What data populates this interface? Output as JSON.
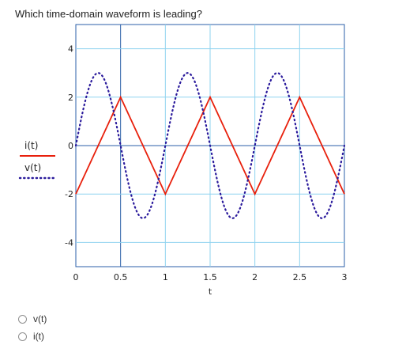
{
  "question": {
    "text": "Which time-domain waveform is leading?"
  },
  "options": [
    {
      "label": "v(t)"
    },
    {
      "label": "i(t)"
    }
  ],
  "chart_data": {
    "type": "line",
    "xlabel": "t",
    "xlim": [
      0,
      3
    ],
    "ylim": [
      -5,
      5
    ],
    "x_ticks": [
      0,
      0.5,
      1,
      1.5,
      2,
      2.5,
      3
    ],
    "x_tick_labels": [
      "0",
      "0.5",
      "1",
      "1.5",
      "2",
      "2.5",
      "3"
    ],
    "y_ticks": [
      4,
      2,
      0,
      -2,
      -4
    ],
    "y_tick_labels": [
      "4",
      "2",
      "0",
      "-2",
      "-4"
    ],
    "grid": true,
    "legend_position": "left",
    "series": [
      {
        "name": "i(t)",
        "style": "solid",
        "color": "#e8200c",
        "amplitude": 2,
        "frequency_hz": 1,
        "phase_deg": 90,
        "waveform": "triangle"
      },
      {
        "name": "v(t)",
        "style": "dotted",
        "color": "#2a1a9c",
        "amplitude": 3,
        "frequency_hz": 1,
        "phase_deg": 0,
        "waveform": "sine"
      }
    ]
  },
  "colors": {
    "grid": "#8fd3ef",
    "axis_frame": "#2b5fa8",
    "current": "#e8200c",
    "voltage": "#2a1a9c"
  }
}
